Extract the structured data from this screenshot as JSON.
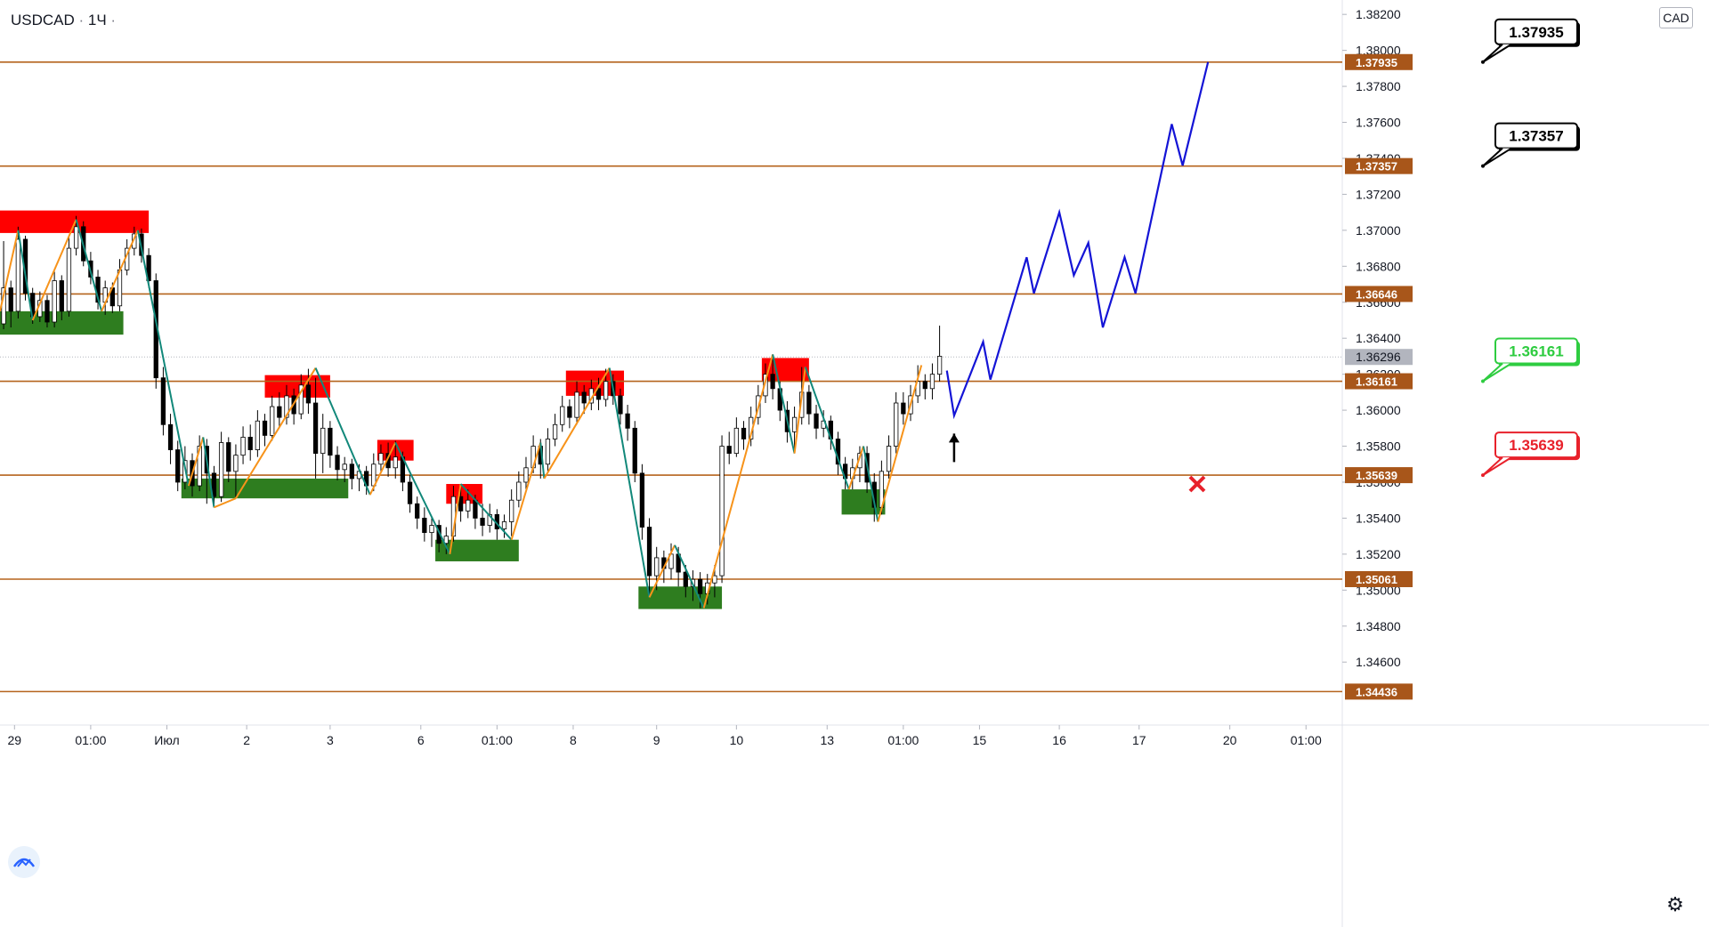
{
  "header": {
    "symbol": "USDCAD",
    "interval": "1Ч"
  },
  "currency": "CAD",
  "colors": {
    "level_line": "#b5631c",
    "level_tag": "#a8561a",
    "up_leg": "#f7931a",
    "down_leg": "#12887a",
    "supply_zone": "#ff0000",
    "demand_zone": "#2e7d1f",
    "projection": "#1414d6",
    "last_price_tag": "#b2b5be",
    "target_green": "#2ecc40",
    "stop_red": "#e8212b"
  },
  "chart_data": {
    "type": "candlestick",
    "ylim": [
      1.3425,
      1.3828
    ],
    "x_range": [
      0,
      185
    ],
    "price_ticks": [
      "1.34600",
      "1.34800",
      "1.35000",
      "1.35200",
      "1.35400",
      "1.35600",
      "1.35800",
      "1.36000",
      "1.36200",
      "1.36400",
      "1.36600",
      "1.36800",
      "1.37000",
      "1.37200",
      "1.37400",
      "1.37600",
      "1.37800",
      "1.38000",
      "1.38200"
    ],
    "time_ticks": [
      {
        "label": "29",
        "x": 2
      },
      {
        "label": "01:00",
        "x": 12.5
      },
      {
        "label": "Июл",
        "x": 23
      },
      {
        "label": "2",
        "x": 34
      },
      {
        "label": "3",
        "x": 45.5
      },
      {
        "label": "6",
        "x": 58
      },
      {
        "label": "01:00",
        "x": 68.5
      },
      {
        "label": "8",
        "x": 79
      },
      {
        "label": "9",
        "x": 90.5
      },
      {
        "label": "10",
        "x": 101.5
      },
      {
        "label": "13",
        "x": 114
      },
      {
        "label": "01:00",
        "x": 124.5
      },
      {
        "label": "15",
        "x": 135
      },
      {
        "label": "16",
        "x": 146
      },
      {
        "label": "17",
        "x": 157
      },
      {
        "label": "20",
        "x": 169.5
      },
      {
        "label": "01:00",
        "x": 180
      }
    ],
    "levels": [
      {
        "label": "1.37935",
        "value": 1.37935
      },
      {
        "label": "1.37357",
        "value": 1.37357
      },
      {
        "label": "1.36646",
        "value": 1.36646
      },
      {
        "label": "1.36161",
        "value": 1.36161
      },
      {
        "label": "1.35639",
        "value": 1.35639
      },
      {
        "label": "1.35061",
        "value": 1.35061
      },
      {
        "label": "1.34436",
        "value": 1.34436
      }
    ],
    "last_price": {
      "label": "1.36296",
      "value": 1.36296
    },
    "supply_zones": [
      {
        "x0": 0,
        "x1": 20.5,
        "y0": 1.36985,
        "y1": 1.3711
      },
      {
        "x0": 36.5,
        "x1": 45.5,
        "y0": 1.3607,
        "y1": 1.36195
      },
      {
        "x0": 52,
        "x1": 57,
        "y0": 1.3572,
        "y1": 1.35835
      },
      {
        "x0": 61.5,
        "x1": 66.5,
        "y0": 1.3548,
        "y1": 1.3559
      },
      {
        "x0": 78,
        "x1": 86,
        "y0": 1.3608,
        "y1": 1.3622
      },
      {
        "x0": 105,
        "x1": 111.5,
        "y0": 1.3616,
        "y1": 1.3629
      }
    ],
    "demand_zones": [
      {
        "x0": 0,
        "x1": 17,
        "y0": 1.3642,
        "y1": 1.3655
      },
      {
        "x0": 25,
        "x1": 48,
        "y0": 1.3551,
        "y1": 1.3562
      },
      {
        "x0": 60,
        "x1": 71.5,
        "y0": 1.3516,
        "y1": 1.3528
      },
      {
        "x0": 88,
        "x1": 99.5,
        "y0": 1.34895,
        "y1": 1.3502
      },
      {
        "x0": 116,
        "x1": 122,
        "y0": 1.3542,
        "y1": 1.3556
      }
    ],
    "zigzag": [
      {
        "x": 0,
        "y": 1.3655
      },
      {
        "x": 2.5,
        "y": 1.37
      },
      {
        "x": 4.5,
        "y": 1.365
      },
      {
        "x": 10.5,
        "y": 1.3706
      },
      {
        "x": 14,
        "y": 1.3655
      },
      {
        "x": 19,
        "y": 1.37
      },
      {
        "x": 26,
        "y": 1.3558
      },
      {
        "x": 28,
        "y": 1.3585
      },
      {
        "x": 29.5,
        "y": 1.3546
      },
      {
        "x": 32.5,
        "y": 1.3551
      },
      {
        "x": 43.5,
        "y": 1.36235
      },
      {
        "x": 51,
        "y": 1.3553
      },
      {
        "x": 54.5,
        "y": 1.3582
      },
      {
        "x": 62,
        "y": 1.352
      },
      {
        "x": 63.5,
        "y": 1.3559
      },
      {
        "x": 70.5,
        "y": 1.3528
      },
      {
        "x": 74.5,
        "y": 1.3582
      },
      {
        "x": 75,
        "y": 1.3562
      },
      {
        "x": 84,
        "y": 1.36235
      },
      {
        "x": 89.5,
        "y": 1.3496
      },
      {
        "x": 93,
        "y": 1.3525
      },
      {
        "x": 97,
        "y": 1.349
      },
      {
        "x": 106.5,
        "y": 1.3631
      },
      {
        "x": 109.5,
        "y": 1.3576
      },
      {
        "x": 111,
        "y": 1.3624
      },
      {
        "x": 117,
        "y": 1.3556
      },
      {
        "x": 119,
        "y": 1.358
      },
      {
        "x": 121,
        "y": 1.3538
      },
      {
        "x": 127,
        "y": 1.3625
      }
    ],
    "candles": [
      [
        0.5,
        1.3648,
        1.3668,
        1.3694,
        1.3645
      ],
      [
        1.5,
        1.3668,
        1.3655,
        1.3672,
        1.3646
      ],
      [
        2.5,
        1.3655,
        1.3695,
        1.3702,
        1.3651
      ],
      [
        3.5,
        1.3695,
        1.3665,
        1.3697,
        1.3661
      ],
      [
        4.5,
        1.3665,
        1.3652,
        1.3668,
        1.3648
      ],
      [
        5.5,
        1.3652,
        1.3661,
        1.3666,
        1.3649
      ],
      [
        6.5,
        1.3661,
        1.3649,
        1.3664,
        1.3646
      ],
      [
        7.5,
        1.3649,
        1.3672,
        1.3677,
        1.3646
      ],
      [
        8.5,
        1.3672,
        1.3655,
        1.3675,
        1.365
      ],
      [
        9.5,
        1.3655,
        1.369,
        1.3696,
        1.3652
      ],
      [
        10.5,
        1.369,
        1.3702,
        1.3708,
        1.3686
      ],
      [
        11.5,
        1.3702,
        1.3683,
        1.3705,
        1.368
      ],
      [
        12.5,
        1.3683,
        1.3674,
        1.3688,
        1.367
      ],
      [
        13.5,
        1.3674,
        1.366,
        1.3678,
        1.3656
      ],
      [
        14.5,
        1.366,
        1.3668,
        1.3672,
        1.3653
      ],
      [
        15.5,
        1.3668,
        1.3658,
        1.3671,
        1.3654
      ],
      [
        16.5,
        1.3658,
        1.3678,
        1.3684,
        1.3655
      ],
      [
        17.5,
        1.3678,
        1.369,
        1.3695,
        1.3675
      ],
      [
        18.5,
        1.369,
        1.3698,
        1.3702,
        1.3686
      ],
      [
        19.5,
        1.3698,
        1.3686,
        1.3701,
        1.3682
      ],
      [
        20.5,
        1.3686,
        1.3672,
        1.369,
        1.3668
      ],
      [
        21.5,
        1.3672,
        1.3618,
        1.3676,
        1.3612
      ],
      [
        22.5,
        1.3618,
        1.3592,
        1.3624,
        1.3586
      ],
      [
        23.5,
        1.3592,
        1.3578,
        1.3598,
        1.357
      ],
      [
        24.5,
        1.3578,
        1.356,
        1.3583,
        1.3555
      ],
      [
        25.5,
        1.356,
        1.3572,
        1.358,
        1.3556
      ],
      [
        26.5,
        1.3572,
        1.3558,
        1.3576,
        1.3552
      ],
      [
        27.5,
        1.3558,
        1.358,
        1.3586,
        1.3555
      ],
      [
        28.5,
        1.358,
        1.3565,
        1.3584,
        1.3548
      ],
      [
        29.5,
        1.3565,
        1.3552,
        1.3569,
        1.3546
      ],
      [
        30.5,
        1.3552,
        1.3582,
        1.3588,
        1.3549
      ],
      [
        31.5,
        1.3582,
        1.3566,
        1.3585,
        1.356
      ],
      [
        32.5,
        1.3566,
        1.3575,
        1.3581,
        1.3551
      ],
      [
        33.5,
        1.3575,
        1.3585,
        1.3591,
        1.357
      ],
      [
        34.5,
        1.3585,
        1.3578,
        1.3592,
        1.3572
      ],
      [
        35.5,
        1.3578,
        1.3594,
        1.36,
        1.3574
      ],
      [
        36.5,
        1.3594,
        1.3586,
        1.3598,
        1.358
      ],
      [
        37.5,
        1.3586,
        1.3602,
        1.3608,
        1.3583
      ],
      [
        38.5,
        1.3602,
        1.3596,
        1.361,
        1.359
      ],
      [
        39.5,
        1.3596,
        1.3608,
        1.3614,
        1.3592
      ],
      [
        40.5,
        1.3608,
        1.3598,
        1.3612,
        1.3592
      ],
      [
        41.5,
        1.3598,
        1.3614,
        1.362,
        1.3595
      ],
      [
        42.5,
        1.3614,
        1.3604,
        1.3623,
        1.3598
      ],
      [
        43.5,
        1.3604,
        1.3576,
        1.3618,
        1.3562
      ],
      [
        44.5,
        1.3576,
        1.359,
        1.3598,
        1.3565
      ],
      [
        45.5,
        1.359,
        1.3575,
        1.3594,
        1.3568
      ],
      [
        46.5,
        1.3575,
        1.3567,
        1.358,
        1.3561
      ],
      [
        47.5,
        1.3567,
        1.357,
        1.3574,
        1.356
      ],
      [
        48.5,
        1.357,
        1.3562,
        1.3573,
        1.3556
      ],
      [
        49.5,
        1.3562,
        1.3566,
        1.357,
        1.3555
      ],
      [
        50.5,
        1.3566,
        1.3558,
        1.3569,
        1.3553
      ],
      [
        51.5,
        1.3558,
        1.357,
        1.3576,
        1.3555
      ],
      [
        52.5,
        1.357,
        1.3576,
        1.3581,
        1.3565
      ],
      [
        53.5,
        1.3576,
        1.3568,
        1.3582,
        1.3563
      ],
      [
        54.5,
        1.3568,
        1.3574,
        1.3583,
        1.3562
      ],
      [
        55.5,
        1.3574,
        1.356,
        1.3577,
        1.3555
      ],
      [
        56.5,
        1.356,
        1.3548,
        1.3564,
        1.3543
      ],
      [
        57.5,
        1.3548,
        1.354,
        1.3552,
        1.3534
      ],
      [
        58.5,
        1.354,
        1.3532,
        1.3546,
        1.3527
      ],
      [
        59.5,
        1.3532,
        1.3536,
        1.3541,
        1.3524
      ],
      [
        60.5,
        1.3536,
        1.3526,
        1.3539,
        1.3521
      ],
      [
        61.5,
        1.3526,
        1.353,
        1.3535,
        1.352
      ],
      [
        62.5,
        1.353,
        1.3552,
        1.3558,
        1.3527
      ],
      [
        63.5,
        1.3552,
        1.3544,
        1.3559,
        1.3538
      ],
      [
        64.5,
        1.3544,
        1.355,
        1.3556,
        1.354
      ],
      [
        65.5,
        1.355,
        1.354,
        1.3553,
        1.3534
      ],
      [
        66.5,
        1.354,
        1.3536,
        1.3548,
        1.353
      ],
      [
        67.5,
        1.3536,
        1.3542,
        1.3548,
        1.3532
      ],
      [
        68.5,
        1.3542,
        1.3534,
        1.3545,
        1.3528
      ],
      [
        69.5,
        1.3534,
        1.3538,
        1.3542,
        1.3529
      ],
      [
        70.5,
        1.3538,
        1.355,
        1.3556,
        1.353
      ],
      [
        71.5,
        1.355,
        1.356,
        1.3566,
        1.3546
      ],
      [
        72.5,
        1.356,
        1.3568,
        1.3574,
        1.3556
      ],
      [
        73.5,
        1.3568,
        1.358,
        1.3586,
        1.3565
      ],
      [
        74.5,
        1.358,
        1.357,
        1.3584,
        1.3562
      ],
      [
        75.5,
        1.357,
        1.3584,
        1.359,
        1.3566
      ],
      [
        76.5,
        1.3584,
        1.3592,
        1.3598,
        1.358
      ],
      [
        77.5,
        1.3592,
        1.3602,
        1.3608,
        1.3588
      ],
      [
        78.5,
        1.3602,
        1.3596,
        1.3606,
        1.359
      ],
      [
        79.5,
        1.3596,
        1.361,
        1.3616,
        1.3592
      ],
      [
        80.5,
        1.361,
        1.3604,
        1.3614,
        1.3598
      ],
      [
        81.5,
        1.3604,
        1.3612,
        1.3617,
        1.36
      ],
      [
        82.5,
        1.3612,
        1.3606,
        1.3618,
        1.36
      ],
      [
        83.5,
        1.3606,
        1.3616,
        1.3623,
        1.3602
      ],
      [
        84.5,
        1.3616,
        1.3608,
        1.362,
        1.3603
      ],
      [
        85.5,
        1.3608,
        1.3598,
        1.3612,
        1.3592
      ],
      [
        86.5,
        1.3598,
        1.359,
        1.3603,
        1.3583
      ],
      [
        87.5,
        1.359,
        1.3565,
        1.3594,
        1.356
      ],
      [
        88.5,
        1.3565,
        1.3535,
        1.357,
        1.3528
      ],
      [
        89.5,
        1.3535,
        1.3508,
        1.354,
        1.3496
      ],
      [
        90.5,
        1.3508,
        1.3518,
        1.3524,
        1.35
      ],
      [
        91.5,
        1.3518,
        1.3512,
        1.3522,
        1.3504
      ],
      [
        92.5,
        1.3512,
        1.352,
        1.3526,
        1.3506
      ],
      [
        93.5,
        1.352,
        1.351,
        1.3524,
        1.3502
      ],
      [
        94.5,
        1.351,
        1.3502,
        1.3514,
        1.3496
      ],
      [
        95.5,
        1.3502,
        1.3506,
        1.3511,
        1.3494
      ],
      [
        96.5,
        1.3506,
        1.3498,
        1.351,
        1.349
      ],
      [
        97.5,
        1.3498,
        1.3504,
        1.3509,
        1.3492
      ],
      [
        98.5,
        1.3504,
        1.3508,
        1.3514,
        1.3496
      ],
      [
        99.5,
        1.3508,
        1.358,
        1.3586,
        1.3504
      ],
      [
        100.5,
        1.358,
        1.3576,
        1.3588,
        1.357
      ],
      [
        101.5,
        1.3576,
        1.359,
        1.3596,
        1.3574
      ],
      [
        102.5,
        1.359,
        1.3584,
        1.3594,
        1.3578
      ],
      [
        103.5,
        1.3584,
        1.3596,
        1.3602,
        1.358
      ],
      [
        104.5,
        1.3596,
        1.3608,
        1.3614,
        1.3592
      ],
      [
        105.5,
        1.3608,
        1.362,
        1.3626,
        1.3604
      ],
      [
        106.5,
        1.362,
        1.3612,
        1.3631,
        1.3606
      ],
      [
        107.5,
        1.3612,
        1.36,
        1.3616,
        1.3594
      ],
      [
        108.5,
        1.36,
        1.3588,
        1.3605,
        1.3582
      ],
      [
        109.5,
        1.3588,
        1.3596,
        1.3602,
        1.3576
      ],
      [
        110.5,
        1.3596,
        1.361,
        1.3624,
        1.3592
      ],
      [
        111.5,
        1.361,
        1.3598,
        1.3614,
        1.3592
      ],
      [
        112.5,
        1.3598,
        1.359,
        1.3603,
        1.3584
      ],
      [
        113.5,
        1.359,
        1.3594,
        1.36,
        1.3585
      ],
      [
        114.5,
        1.3594,
        1.3584,
        1.3597,
        1.3578
      ],
      [
        115.5,
        1.3584,
        1.357,
        1.3588,
        1.3564
      ],
      [
        116.5,
        1.357,
        1.3562,
        1.3574,
        1.3556
      ],
      [
        117.5,
        1.3562,
        1.3568,
        1.3573,
        1.3556
      ],
      [
        118.5,
        1.3568,
        1.3576,
        1.358,
        1.356
      ],
      [
        119.5,
        1.3576,
        1.356,
        1.358,
        1.3554
      ],
      [
        120.5,
        1.356,
        1.3546,
        1.3565,
        1.3538
      ],
      [
        121.5,
        1.3546,
        1.3566,
        1.3572,
        1.3542
      ],
      [
        122.5,
        1.3566,
        1.358,
        1.3586,
        1.3562
      ],
      [
        123.5,
        1.358,
        1.3604,
        1.361,
        1.3576
      ],
      [
        124.5,
        1.3604,
        1.3598,
        1.361,
        1.3592
      ],
      [
        125.5,
        1.3598,
        1.3608,
        1.3614,
        1.3594
      ],
      [
        126.5,
        1.3608,
        1.3616,
        1.3625,
        1.3604
      ],
      [
        127.5,
        1.3616,
        1.3612,
        1.362,
        1.3606
      ],
      [
        128.5,
        1.3612,
        1.362,
        1.3626,
        1.3606
      ],
      [
        129.5,
        1.362,
        1.363,
        1.3647,
        1.3616
      ]
    ],
    "projection": [
      {
        "x": 130.5,
        "y": 1.3622
      },
      {
        "x": 131.5,
        "y": 1.3597
      },
      {
        "x": 135.5,
        "y": 1.3638
      },
      {
        "x": 136.5,
        "y": 1.3617
      },
      {
        "x": 141.5,
        "y": 1.3685
      },
      {
        "x": 142.5,
        "y": 1.3665
      },
      {
        "x": 146,
        "y": 1.371
      },
      {
        "x": 148,
        "y": 1.3675
      },
      {
        "x": 150,
        "y": 1.3693
      },
      {
        "x": 152,
        "y": 1.3646
      },
      {
        "x": 155,
        "y": 1.3685
      },
      {
        "x": 156.5,
        "y": 1.3665
      },
      {
        "x": 161.5,
        "y": 1.3759
      },
      {
        "x": 163,
        "y": 1.3736
      },
      {
        "x": 166.5,
        "y": 1.37935
      }
    ],
    "callouts": [
      {
        "label": "1.37935",
        "value": 1.37935,
        "style": "black"
      },
      {
        "label": "1.37357",
        "value": 1.37357,
        "style": "black"
      },
      {
        "label": "1.36161",
        "value": 1.36161,
        "style": "green"
      },
      {
        "label": "1.35639",
        "value": 1.35639,
        "style": "red"
      }
    ],
    "entry_arrow": {
      "x": 131.5,
      "y": 1.3587
    },
    "stop_marker": {
      "x": 165,
      "y": 1.3559
    }
  }
}
